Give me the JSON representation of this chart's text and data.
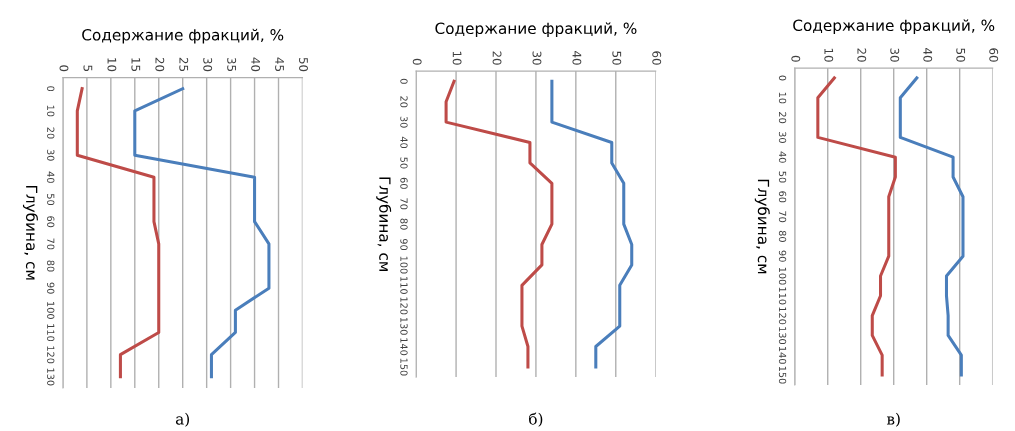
{
  "chart_data": [
    {
      "type": "line",
      "orientation": "horizontal",
      "xlabel": "Содержание фракций, %",
      "ylabel": "Глубина, см",
      "annotations": [
        "а)"
      ],
      "grid": "x",
      "categories": [
        "0",
        "10",
        "20",
        "30",
        "40",
        "50",
        "60",
        "70",
        "80",
        "90",
        "100",
        "110",
        "120",
        "130"
      ],
      "xlim": [
        0,
        50
      ],
      "xticks": [
        0,
        5,
        10,
        15,
        20,
        25,
        30,
        35,
        40,
        45,
        50
      ],
      "series": [
        {
          "color": "#4a7ebb",
          "values": [
            25,
            15,
            15,
            15,
            40,
            40,
            40,
            43,
            43,
            43,
            36,
            36,
            31,
            31
          ]
        },
        {
          "color": "#be4b48",
          "values": [
            4,
            3,
            3,
            3,
            19,
            19,
            19,
            20,
            20,
            20,
            20,
            20,
            12,
            12
          ]
        }
      ]
    },
    {
      "type": "line",
      "orientation": "horizontal",
      "xlabel": "Содержание фракций, %",
      "ylabel": "Глубина, см",
      "annotations": [
        "б)"
      ],
      "grid": "x",
      "categories": [
        "0",
        "20",
        "30",
        "40",
        "50",
        "60",
        "70",
        "80",
        "90",
        "100",
        "110",
        "120",
        "130",
        "140",
        "150"
      ],
      "xlim": [
        0,
        60
      ],
      "xticks": [
        0,
        10,
        20,
        30,
        40,
        50,
        60
      ],
      "series": [
        {
          "color": "#4a7ebb",
          "values": [
            34,
            34,
            34,
            49,
            49,
            52,
            52,
            52,
            54,
            54,
            51,
            51,
            51,
            45,
            45
          ]
        },
        {
          "color": "#be4b48",
          "values": [
            9.5,
            7.5,
            7.5,
            28.5,
            28.5,
            34,
            34,
            34,
            31.5,
            31.5,
            26.5,
            26.5,
            26.5,
            28,
            28
          ]
        }
      ]
    },
    {
      "type": "line",
      "orientation": "horizontal",
      "xlabel": "Содержание фракций, %",
      "ylabel": "Глубина, см",
      "annotations": [
        "в)"
      ],
      "grid": "x",
      "categories": [
        "0",
        "10",
        "20",
        "30",
        "40",
        "50",
        "60",
        "70",
        "80",
        "90",
        "100",
        "110",
        "120",
        "130",
        "140",
        "150"
      ],
      "xlim": [
        0,
        60
      ],
      "xticks": [
        0,
        10,
        20,
        30,
        40,
        50,
        60
      ],
      "series": [
        {
          "color": "#4a7ebb",
          "values": [
            37,
            32,
            32,
            32,
            48,
            48,
            51,
            51,
            51,
            51,
            46,
            46,
            46.5,
            46.5,
            50.5,
            50.5
          ]
        },
        {
          "color": "#be4b48",
          "values": [
            12,
            7,
            7,
            7,
            30.5,
            30.5,
            28.5,
            28.5,
            28.5,
            28.5,
            26,
            26,
            23.5,
            23.5,
            26.5,
            26.5
          ]
        }
      ]
    }
  ]
}
